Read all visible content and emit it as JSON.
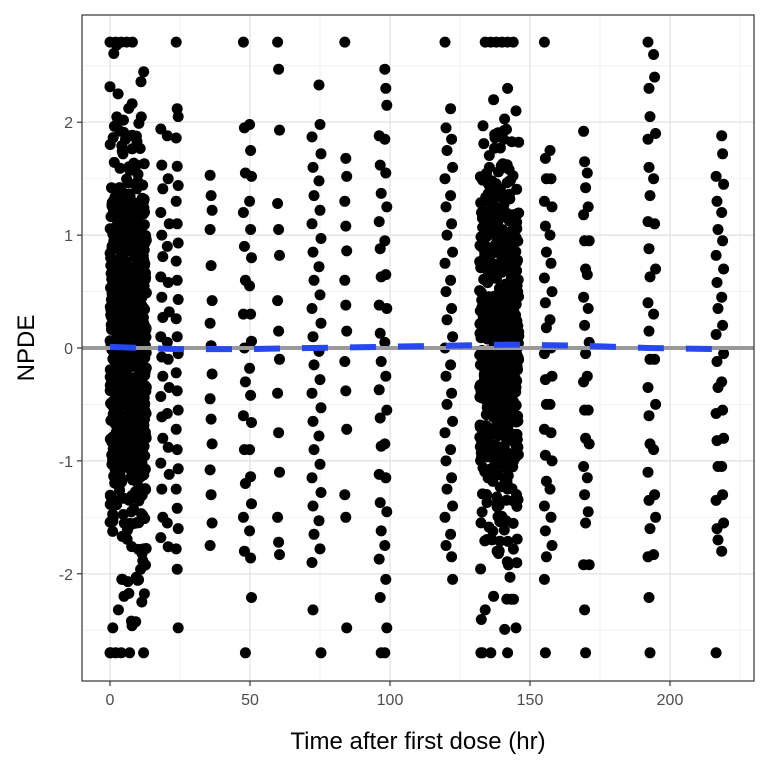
{
  "chart_data": {
    "type": "scatter",
    "title": "",
    "xlabel": "Time after first dose (hr)",
    "ylabel": "NPDE",
    "xlim": [
      -10,
      230
    ],
    "ylim": [
      -2.95,
      2.95
    ],
    "x_ticks": [
      0,
      50,
      100,
      150,
      200
    ],
    "y_ticks": [
      -2,
      -1,
      0,
      1,
      2
    ],
    "grid": true,
    "reference_line": {
      "y": 0,
      "color": "#999999"
    },
    "trend_line": {
      "style": "dashed",
      "color": "#2747f0",
      "points": [
        [
          0,
          0.01
        ],
        [
          24,
          -0.01
        ],
        [
          48,
          -0.01
        ],
        [
          72,
          0.0
        ],
        [
          96,
          0.01
        ],
        [
          120,
          0.02
        ],
        [
          144,
          0.03
        ],
        [
          168,
          0.02
        ],
        [
          192,
          0.0
        ],
        [
          218,
          -0.01
        ]
      ]
    },
    "point_color": "#000000",
    "dense_clusters": [
      {
        "x_range": [
          0,
          13
        ],
        "y_range": [
          -2.7,
          2.7
        ],
        "count": 900
      },
      {
        "x_range": [
          132,
          146
        ],
        "y_range": [
          -2.7,
          2.7
        ],
        "count": 650
      }
    ],
    "columns": [
      {
        "x": 18.5,
        "values": [
          1.94,
          1.62,
          1.41,
          1.2,
          1.0,
          0.81,
          0.63,
          0.45,
          0.27,
          0.1,
          -0.08,
          -0.25,
          -0.43,
          -0.61,
          -0.8,
          -1.02,
          -1.25,
          -1.5,
          -1.68
        ]
      },
      {
        "x": 20.8,
        "values": [
          1.88,
          1.5,
          1.1,
          0.9,
          0.58,
          0.32,
          0.05,
          -0.1,
          -0.35,
          -0.58,
          -0.88,
          -1.12,
          -1.55,
          -1.76
        ]
      },
      {
        "x": 24.0,
        "values": [
          2.71,
          2.12,
          2.05,
          1.86,
          1.61,
          1.44,
          1.3,
          1.1,
          0.93,
          0.77,
          0.6,
          0.43,
          0.26,
          0.1,
          -0.05,
          -0.22,
          -0.38,
          -0.55,
          -0.72,
          -0.9,
          -1.07,
          -1.25,
          -1.42,
          -1.6,
          -1.78,
          -1.96,
          -2.48
        ]
      },
      {
        "x": 36.1,
        "values": [
          1.53,
          1.35,
          1.22,
          1.05,
          0.73,
          0.42,
          0.22,
          0.02,
          -0.23,
          -0.45,
          -0.63,
          -0.85,
          -1.08,
          -1.3,
          -1.55,
          -1.75
        ]
      },
      {
        "x": 48.0,
        "values": [
          2.71,
          1.95,
          1.55,
          1.2,
          0.9,
          0.6,
          0.3,
          0.0,
          -0.3,
          -0.6,
          -0.9,
          -1.2,
          -1.5,
          -1.8,
          -2.7
        ]
      },
      {
        "x": 50.2,
        "values": [
          1.98,
          1.75,
          1.52,
          1.3,
          1.05,
          0.8,
          0.55,
          0.3,
          0.06,
          -0.18,
          -0.42,
          -0.66,
          -0.9,
          -1.14,
          -1.38,
          -1.62,
          -1.86,
          -2.21
        ]
      },
      {
        "x": 60.2,
        "values": [
          2.71,
          2.47,
          1.93,
          1.28,
          1.05,
          0.82,
          0.42,
          0.15,
          -0.1,
          -0.4,
          -0.75,
          -1.1,
          -1.5,
          -1.72,
          -1.83
        ]
      },
      {
        "x": 72.5,
        "values": [
          1.87,
          1.6,
          1.35,
          1.1,
          0.85,
          0.6,
          0.35,
          0.1,
          -0.15,
          -0.4,
          -0.65,
          -0.9,
          -1.15,
          -1.4,
          -1.65,
          -1.9,
          -2.32
        ]
      },
      {
        "x": 75.0,
        "values": [
          2.33,
          1.98,
          1.72,
          1.48,
          1.22,
          0.97,
          0.72,
          0.47,
          0.22,
          -0.03,
          -0.28,
          -0.53,
          -0.78,
          -1.03,
          -1.28,
          -1.53,
          -1.78,
          -2.7
        ]
      },
      {
        "x": 84.2,
        "values": [
          2.71,
          1.68,
          1.52,
          1.3,
          1.08,
          0.86,
          0.6,
          0.38,
          0.15,
          -0.12,
          -0.38,
          -0.72,
          -1.3,
          -1.5,
          -2.48
        ]
      },
      {
        "x": 96.5,
        "values": [
          1.88,
          1.62,
          1.37,
          1.12,
          0.88,
          0.63,
          0.38,
          0.13,
          -0.12,
          -0.37,
          -0.62,
          -0.87,
          -1.12,
          -1.37,
          -1.62,
          -1.87,
          -2.21,
          -2.7
        ]
      },
      {
        "x": 98.5,
        "values": [
          2.47,
          2.3,
          2.15,
          1.85,
          1.55,
          1.25,
          0.95,
          0.65,
          0.35,
          0.05,
          -0.25,
          -0.55,
          -0.85,
          -1.15,
          -1.45,
          -1.75,
          -2.05,
          -2.48,
          -2.7
        ]
      },
      {
        "x": 120.0,
        "values": [
          2.71,
          1.95,
          1.75,
          1.5,
          1.25,
          1.0,
          0.75,
          0.5,
          0.25,
          0.0,
          -0.25,
          -0.5,
          -0.75,
          -1.0,
          -1.25,
          -1.5,
          -1.75
        ]
      },
      {
        "x": 122.0,
        "values": [
          2.12,
          1.85,
          1.6,
          1.35,
          1.1,
          0.85,
          0.6,
          0.35,
          0.1,
          -0.15,
          -0.4,
          -0.65,
          -0.9,
          -1.15,
          -1.4,
          -1.65,
          -1.85,
          -2.05
        ]
      },
      {
        "x": 155.5,
        "values": [
          2.71,
          1.68,
          1.5,
          1.3,
          1.08,
          0.85,
          0.62,
          0.4,
          0.18,
          -0.05,
          -0.28,
          -0.5,
          -0.72,
          -0.95,
          -1.18,
          -1.4,
          -1.62,
          -1.85,
          -2.05,
          -2.7
        ]
      },
      {
        "x": 157.5,
        "values": [
          1.75,
          1.5,
          1.25,
          1.0,
          0.75,
          0.5,
          0.25,
          0.0,
          -0.25,
          -0.5,
          -0.75,
          -1.0,
          -1.25,
          -1.5,
          -1.75
        ]
      },
      {
        "x": 169.5,
        "values": [
          1.92,
          1.65,
          1.42,
          1.18,
          0.95,
          0.7,
          0.45,
          0.2,
          -0.05,
          -0.3,
          -0.55,
          -0.8,
          -1.05,
          -1.3,
          -1.55,
          -1.92,
          -2.32,
          -2.7
        ]
      },
      {
        "x": 170.8,
        "values": [
          1.55,
          1.25,
          0.95,
          0.65,
          0.35,
          0.05,
          -0.25,
          -0.55,
          -0.85,
          -1.15,
          -1.45,
          -1.92
        ]
      },
      {
        "x": 192.5,
        "values": [
          2.71,
          2.3,
          2.05,
          1.85,
          1.6,
          1.35,
          1.12,
          0.88,
          0.63,
          0.4,
          0.15,
          -0.1,
          -0.35,
          -0.6,
          -0.85,
          -1.1,
          -1.35,
          -1.6,
          -1.85,
          -2.21,
          -2.7
        ]
      },
      {
        "x": 194.5,
        "values": [
          2.6,
          2.4,
          1.9,
          1.5,
          1.1,
          0.7,
          0.3,
          -0.1,
          -0.5,
          -0.9,
          -1.3,
          -1.5,
          -1.83
        ]
      },
      {
        "x": 216.8,
        "values": [
          1.52,
          1.3,
          1.05,
          0.82,
          0.58,
          0.35,
          0.12,
          -0.12,
          -0.35,
          -0.58,
          -0.82,
          -1.05,
          -1.35,
          -1.6,
          -1.7,
          -2.7
        ]
      },
      {
        "x": 218.8,
        "values": [
          1.88,
          1.72,
          1.45,
          1.2,
          0.95,
          0.7,
          0.45,
          0.2,
          -0.05,
          -0.3,
          -0.55,
          -0.8,
          -1.05,
          -1.3,
          -1.55,
          -1.8
        ]
      }
    ],
    "extra_points": [
      [
        0,
        2.71
      ],
      [
        2,
        2.71
      ],
      [
        4,
        2.71
      ],
      [
        6,
        2.71
      ],
      [
        8,
        2.71
      ],
      [
        0,
        -2.7
      ],
      [
        2,
        -2.7
      ],
      [
        4,
        -2.7
      ],
      [
        7,
        -2.7
      ],
      [
        12,
        -2.7
      ],
      [
        1,
        -2.48
      ],
      [
        3,
        -2.32
      ],
      [
        5,
        -2.2
      ],
      [
        134,
        2.71
      ],
      [
        136,
        2.71
      ],
      [
        138,
        2.71
      ],
      [
        140,
        2.71
      ],
      [
        142,
        2.71
      ],
      [
        144,
        2.71
      ],
      [
        133,
        -2.7
      ],
      [
        136,
        -2.7
      ],
      [
        142,
        -2.7
      ],
      [
        145,
        -2.48
      ],
      [
        134,
        -2.32
      ],
      [
        137,
        -2.2
      ],
      [
        142,
        2.3
      ],
      [
        137,
        2.2
      ],
      [
        145,
        2.1
      ]
    ]
  }
}
